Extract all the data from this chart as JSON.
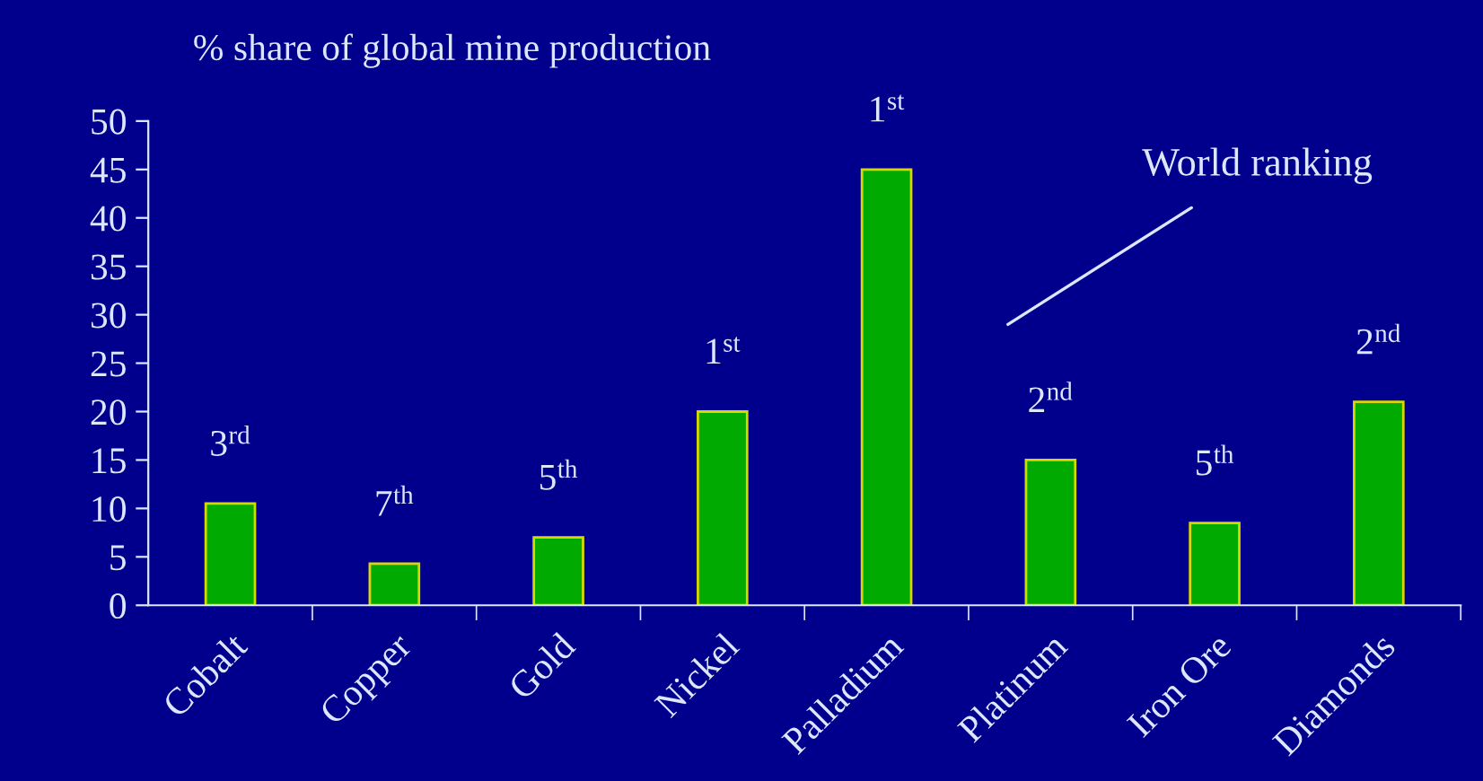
{
  "chart_data": {
    "type": "bar",
    "title": "% share of global mine production",
    "categories": [
      "Cobalt",
      "Copper",
      "Gold",
      "Nickel",
      "Palladium",
      "Platinum",
      "Iron Ore",
      "Diamonds"
    ],
    "values": [
      10.5,
      4.3,
      7,
      20,
      45,
      15,
      8.5,
      21
    ],
    "color": "#00aa00",
    "ylim": [
      0,
      50
    ],
    "yticks": [
      0,
      5,
      10,
      15,
      20,
      25,
      30,
      35,
      40,
      45,
      50
    ],
    "grid": false,
    "annotations": [
      "3$^{rd}$",
      "7$^{th}$",
      "5$^{th}$",
      "1$^{st}$",
      "1$^{st}$",
      "2$^{nd}$",
      "5$^{th}$",
      "2$^{nd}$",
      "World ranking"
    ]
  }
}
